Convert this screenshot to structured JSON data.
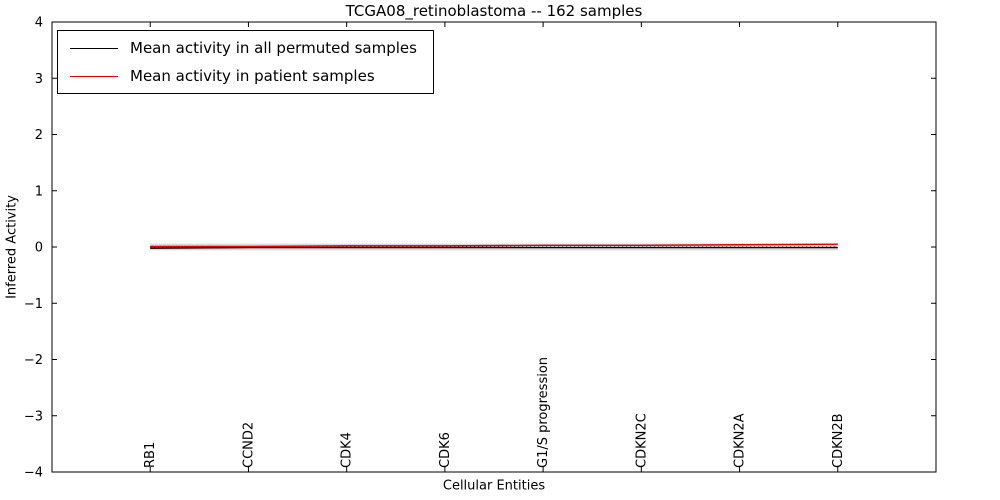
{
  "chart_data": {
    "type": "line",
    "title": "TCGA08_retinoblastoma -- 162 samples",
    "xlabel": "Cellular Entities",
    "ylabel": "Inferred Activity",
    "ylim": [
      -4,
      4
    ],
    "yticks": [
      -4,
      -3,
      -2,
      -1,
      0,
      1,
      2,
      3,
      4
    ],
    "grid": false,
    "legend_position": "upper left",
    "categories": [
      "RB1",
      "CCND2",
      "CDK4",
      "CDK6",
      "G1/S progression",
      "CDKN2C",
      "CDKN2A",
      "CDKN2B"
    ],
    "series": [
      {
        "name": "Mean activity in all permuted samples",
        "color": "#000000",
        "values": [
          -0.02,
          -0.01,
          -0.01,
          -0.01,
          -0.01,
          -0.01,
          -0.01,
          -0.01
        ]
      },
      {
        "name": "Mean activity in patient samples",
        "color": "#dd0000",
        "values": [
          0.01,
          0.01,
          0.02,
          0.02,
          0.03,
          0.03,
          0.04,
          0.05
        ]
      }
    ],
    "envelope": {
      "color": "#bbbbbb",
      "half_width": 0.06
    },
    "zero_line": {
      "color": "#000000",
      "style": "dotted"
    }
  }
}
